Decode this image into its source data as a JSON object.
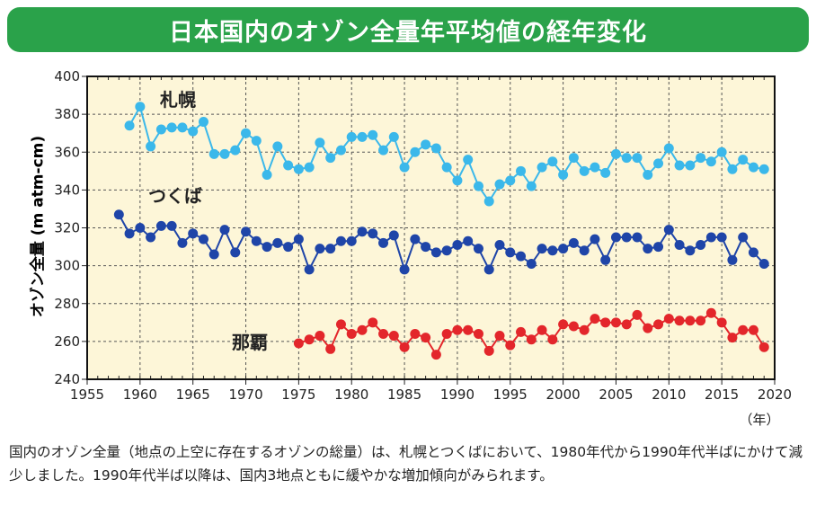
{
  "title": "日本国内のオゾン全量年平均値の経年変化",
  "caption": "国内のオゾン全量（地点の上空に存在するオゾンの総量）は、札幌とつくばにおいて、1980年代から1990年代半ばにかけて減少しました。1990年代半ば以降は、国内3地点ともに緩やかな増加傾向がみられます。",
  "chart_data": {
    "type": "line",
    "xlabel": "（年）",
    "ylabel": "オゾン全量 (m atm-cm)",
    "xlim": [
      1955,
      2020
    ],
    "ylim": [
      240,
      400
    ],
    "xticks": [
      1955,
      1960,
      1965,
      1970,
      1975,
      1980,
      1985,
      1990,
      1995,
      2000,
      2005,
      2010,
      2015,
      2020
    ],
    "yticks": [
      240,
      260,
      280,
      300,
      320,
      340,
      360,
      380,
      400
    ],
    "grid": true,
    "series": [
      {
        "name": "札幌",
        "color": "#3bb8ea",
        "start": 1959,
        "values": [
          374,
          384,
          363,
          372,
          373,
          373,
          371,
          376,
          359,
          359,
          361,
          370,
          366,
          348,
          363,
          353,
          351,
          352,
          365,
          357,
          361,
          368,
          368,
          369,
          361,
          368,
          352,
          360,
          364,
          362,
          352,
          345,
          356,
          342,
          334,
          343,
          345,
          350,
          342,
          352,
          355,
          348,
          357,
          350,
          352,
          349,
          359,
          357,
          357,
          348,
          354,
          362,
          353,
          353,
          357,
          355,
          360,
          351,
          356,
          352,
          351
        ]
      },
      {
        "name": "つくば",
        "color": "#1f45a8",
        "start": 1958,
        "values": [
          327,
          317,
          320,
          315,
          321,
          321,
          312,
          317,
          314,
          306,
          319,
          307,
          318,
          313,
          310,
          312,
          310,
          314,
          298,
          309,
          309,
          313,
          313,
          318,
          317,
          312,
          316,
          298,
          314,
          310,
          307,
          308,
          311,
          313,
          309,
          298,
          311,
          307,
          305,
          301,
          309,
          308,
          309,
          312,
          308,
          314,
          303,
          315,
          315,
          315,
          309,
          310,
          319,
          311,
          308,
          311,
          315,
          315,
          303,
          315,
          307,
          301
        ]
      },
      {
        "name": "那覇",
        "color": "#e3262b",
        "start": 1975,
        "values": [
          259,
          261,
          263,
          256,
          269,
          264,
          266,
          270,
          264,
          263,
          257,
          264,
          262,
          253,
          264,
          266,
          266,
          264,
          255,
          263,
          258,
          265,
          261,
          266,
          261,
          269,
          268,
          266,
          272,
          270,
          270,
          269,
          274,
          267,
          269,
          272,
          271,
          271,
          271,
          275,
          270,
          262,
          266,
          266,
          257
        ]
      }
    ]
  }
}
